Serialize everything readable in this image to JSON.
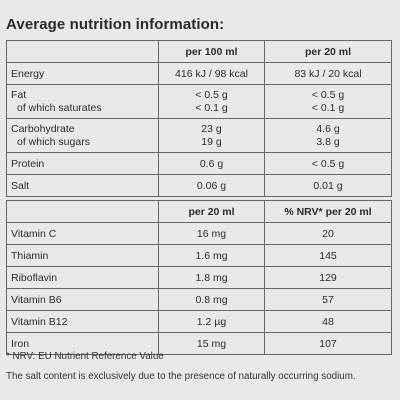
{
  "title": "Average nutrition information:",
  "table1": {
    "headers": [
      "",
      "per 100 ml",
      "per 20 ml"
    ],
    "rows": {
      "energy": {
        "label": "Energy",
        "per100": "416 kJ / 98 kcal",
        "per20": "83 kJ / 20 kcal"
      },
      "fat": {
        "label": "Fat",
        "sub": "of which saturates",
        "per100": "< 0.5 g",
        "per100_sub": "< 0.1 g",
        "per20": "< 0.5 g",
        "per20_sub": "< 0.1 g"
      },
      "carb": {
        "label": "Carbohydrate",
        "sub": "of which sugars",
        "per100": "23 g",
        "per100_sub": "19 g",
        "per20": "4.6 g",
        "per20_sub": "3.8 g"
      },
      "protein": {
        "label": "Protein",
        "per100": "0.6 g",
        "per20": "< 0.5 g"
      },
      "salt": {
        "label": "Salt",
        "per100": "0.06 g",
        "per20": "0.01 g"
      }
    }
  },
  "table2": {
    "headers": [
      "",
      "per 20 ml",
      "% NRV* per 20 ml"
    ],
    "rows": [
      {
        "label": "Vitamin C",
        "amount": "16 mg",
        "nrv": "20"
      },
      {
        "label": "Thiamin",
        "amount": "1.6 mg",
        "nrv": "145"
      },
      {
        "label": "Riboflavin",
        "amount": "1.8 mg",
        "nrv": "129"
      },
      {
        "label": "Vitamin B6",
        "amount": "0.8 mg",
        "nrv": "57"
      },
      {
        "label": "Vitamin B12",
        "amount": "1.2 µg",
        "nrv": "48"
      },
      {
        "label": "Iron",
        "amount": "15 mg",
        "nrv": "107"
      }
    ]
  },
  "footnotes": {
    "nrv": "* NRV: EU Nutrient Reference Value",
    "salt": "The salt content is exclusively due to the presence of naturally occurring sodium."
  }
}
